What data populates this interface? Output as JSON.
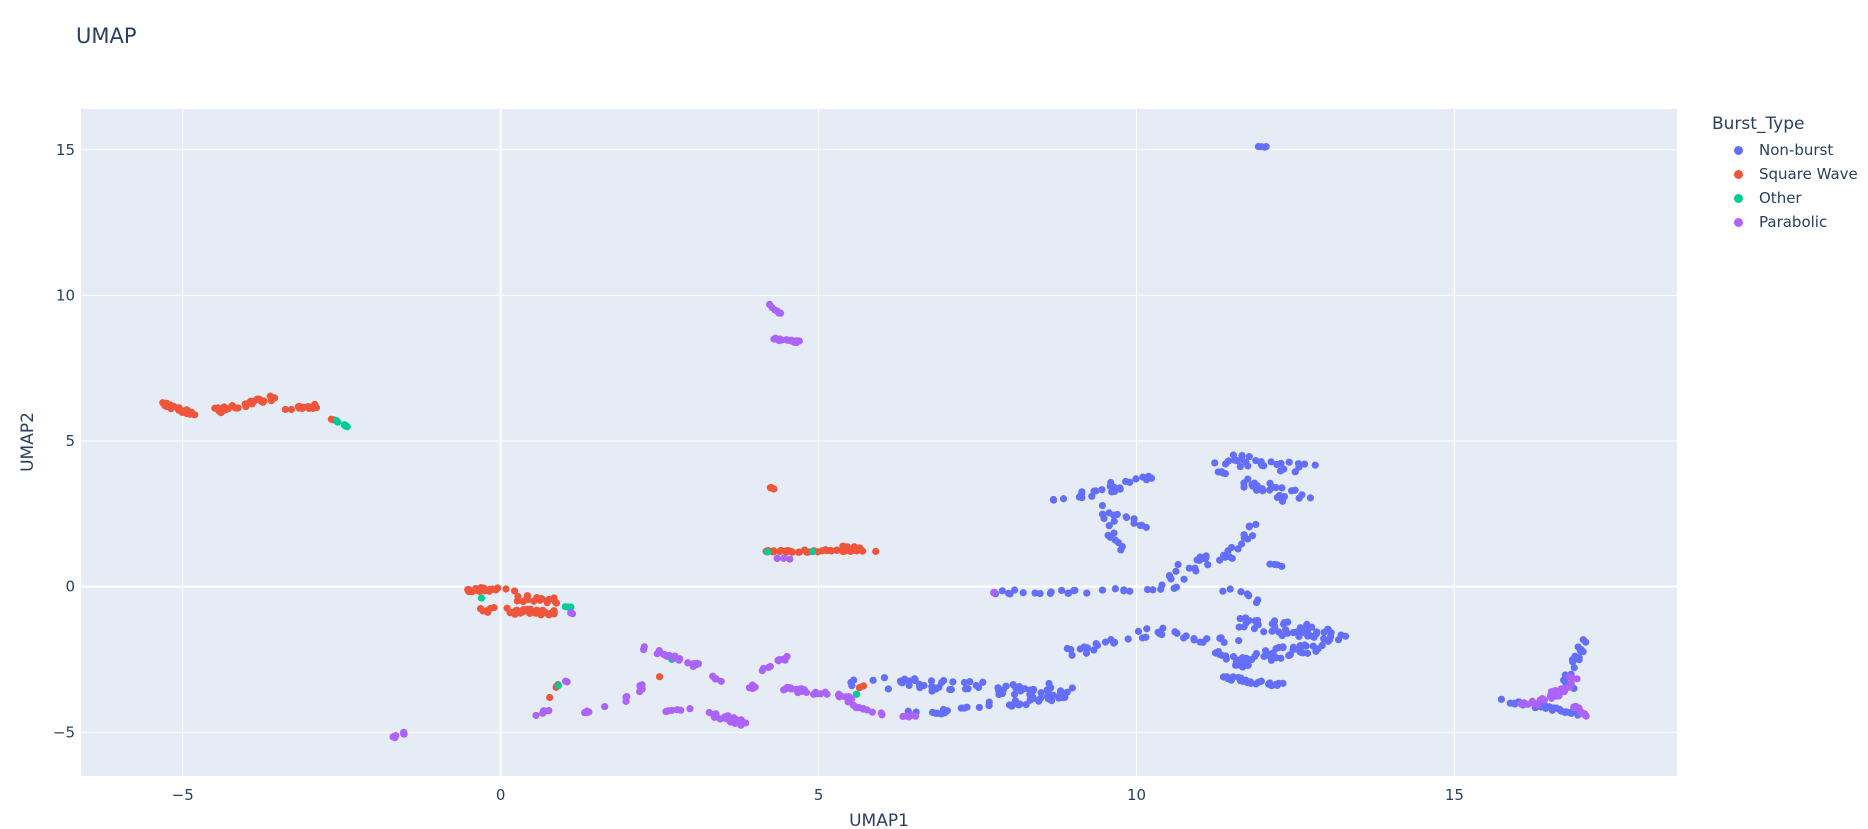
{
  "title": "UMAP",
  "colors": {
    "Non-burst": "#636efa",
    "Square Wave": "#ef553b",
    "Other": "#00cc96",
    "Parabolic": "#ab63fa"
  },
  "chart_data": {
    "type": "scatter",
    "title": "UMAP",
    "xlabel": "UMAP1",
    "ylabel": "UMAP2",
    "xlim": [
      -6.6,
      18.5
    ],
    "ylim": [
      -6.5,
      16.4
    ],
    "xticks": [
      -5,
      0,
      5,
      10,
      15
    ],
    "yticks": [
      -5,
      0,
      5,
      10,
      15
    ],
    "xtick_labels": [
      "−5",
      "0",
      "5",
      "10",
      "15"
    ],
    "ytick_labels": [
      "−5",
      "0",
      "5",
      "10",
      "15"
    ],
    "grid": true,
    "legend_title": "Burst_Type",
    "legend_position": "right",
    "series": [
      {
        "name": "Non-burst",
        "color": "#636efa",
        "clusters": [
          {
            "cx": 11.95,
            "cy": 15.1,
            "rx": 0.08,
            "ry": 0.05,
            "n": 4,
            "slope": 0
          },
          {
            "x1": 5.6,
            "y1": -3.3,
            "x2": 9.1,
            "y2": -3.6,
            "n": 70,
            "spread": 0.45
          },
          {
            "x1": 6.5,
            "y1": -4.4,
            "x2": 8.8,
            "y2": -3.8,
            "n": 35,
            "spread": 0.25
          },
          {
            "x1": 7.8,
            "y1": -0.2,
            "x2": 10.6,
            "y2": -0.1,
            "n": 24,
            "spread": 0.15
          },
          {
            "x1": 8.9,
            "y1": -2.3,
            "x2": 10.4,
            "y2": -1.5,
            "n": 22,
            "spread": 0.3
          },
          {
            "x1": 8.7,
            "y1": 3.0,
            "x2": 9.9,
            "y2": 3.5,
            "n": 20,
            "spread": 0.25
          },
          {
            "x1": 9.6,
            "y1": 3.6,
            "x2": 10.4,
            "y2": 3.8,
            "n": 8,
            "spread": 0.15
          },
          {
            "x1": 9.5,
            "y1": 2.8,
            "x2": 9.7,
            "y2": 1.3,
            "n": 14,
            "spread": 0.2
          },
          {
            "x1": 9.6,
            "y1": 2.5,
            "x2": 10.2,
            "y2": 2.0,
            "n": 8,
            "spread": 0.15
          },
          {
            "x1": 10.3,
            "y1": 0.0,
            "x2": 11.3,
            "y2": 1.0,
            "n": 22,
            "spread": 0.5
          },
          {
            "x1": 10.5,
            "y1": -1.6,
            "x2": 11.6,
            "y2": -2.0,
            "n": 14,
            "spread": 0.3
          },
          {
            "x1": 11.4,
            "y1": 1.0,
            "x2": 11.9,
            "y2": 2.2,
            "n": 14,
            "spread": 0.2
          },
          {
            "x1": 11.4,
            "y1": 4.4,
            "x2": 12.8,
            "y2": 4.0,
            "n": 30,
            "spread": 0.35
          },
          {
            "x1": 11.7,
            "y1": 3.6,
            "x2": 12.6,
            "y2": 3.0,
            "n": 24,
            "spread": 0.35
          },
          {
            "x1": 11.2,
            "y1": 4.0,
            "x2": 11.4,
            "y2": 3.9,
            "n": 4,
            "spread": 0.05
          },
          {
            "x1": 12.1,
            "y1": 0.8,
            "x2": 12.3,
            "y2": 0.7,
            "n": 4,
            "spread": 0.05
          },
          {
            "x1": 11.4,
            "y1": -0.1,
            "x2": 12.0,
            "y2": -0.5,
            "n": 8,
            "spread": 0.25
          },
          {
            "x1": 11.6,
            "y1": -1.2,
            "x2": 13.2,
            "y2": -1.7,
            "n": 50,
            "spread": 0.45
          },
          {
            "x1": 11.6,
            "y1": -2.6,
            "x2": 12.9,
            "y2": -2.0,
            "n": 45,
            "spread": 0.35
          },
          {
            "x1": 11.3,
            "y1": -3.1,
            "x2": 12.3,
            "y2": -3.4,
            "n": 26,
            "spread": 0.15
          },
          {
            "x1": 11.2,
            "y1": -2.2,
            "x2": 11.8,
            "y2": -2.8,
            "n": 8,
            "spread": 0.2
          },
          {
            "x1": 15.7,
            "y1": -3.9,
            "x2": 16.6,
            "y2": -4.2,
            "n": 22,
            "spread": 0.12
          },
          {
            "x1": 16.5,
            "y1": -4.2,
            "x2": 17.0,
            "y2": -4.4,
            "n": 10,
            "spread": 0.12
          },
          {
            "x1": 16.8,
            "y1": -3.0,
            "x2": 17.1,
            "y2": -1.6,
            "n": 16,
            "spread": 0.12
          },
          {
            "x1": 16.7,
            "y1": -3.2,
            "x2": 16.9,
            "y2": -3.5,
            "n": 5,
            "spread": 0.08
          }
        ]
      },
      {
        "name": "Square Wave",
        "color": "#ef553b",
        "clusters": [
          {
            "x1": -5.3,
            "y1": 6.3,
            "x2": -4.8,
            "y2": 5.9,
            "n": 22,
            "spread": 0.12
          },
          {
            "x1": -4.5,
            "y1": 6.0,
            "x2": -3.6,
            "y2": 6.5,
            "n": 30,
            "spread": 0.18
          },
          {
            "x1": -3.4,
            "y1": 6.1,
            "x2": -2.9,
            "y2": 6.2,
            "n": 16,
            "spread": 0.15
          },
          {
            "x1": -2.7,
            "y1": 5.8,
            "x2": -2.6,
            "y2": 5.7,
            "n": 3,
            "spread": 0.05
          },
          {
            "x1": -0.5,
            "y1": -0.1,
            "x2": 0.2,
            "y2": -0.1,
            "n": 20,
            "spread": 0.15
          },
          {
            "x1": -0.3,
            "y1": -0.8,
            "x2": 0.9,
            "y2": -0.9,
            "n": 40,
            "spread": 0.2
          },
          {
            "x1": 0.3,
            "y1": -0.4,
            "x2": 0.9,
            "y2": -0.5,
            "n": 16,
            "spread": 0.2
          },
          {
            "x1": 0.8,
            "y1": -3.8,
            "x2": 0.9,
            "y2": -3.3,
            "n": 4,
            "spread": 0.08
          },
          {
            "x1": 4.2,
            "y1": 3.45,
            "x2": 4.3,
            "y2": 3.35,
            "n": 5,
            "spread": 0.04
          },
          {
            "x1": 4.1,
            "y1": 1.2,
            "x2": 5.9,
            "y2": 1.25,
            "n": 45,
            "spread": 0.08
          },
          {
            "x1": 5.4,
            "y1": 1.4,
            "x2": 5.7,
            "y2": 1.3,
            "n": 6,
            "spread": 0.05
          },
          {
            "x1": 2.5,
            "y1": -3.1,
            "x2": 2.5,
            "y2": -3.1,
            "n": 1,
            "spread": 0.02
          },
          {
            "x1": 5.6,
            "y1": -3.5,
            "x2": 5.7,
            "y2": -3.4,
            "n": 2,
            "spread": 0.03
          }
        ]
      },
      {
        "name": "Other",
        "color": "#00cc96",
        "clusters": [
          {
            "x1": -2.6,
            "y1": 5.7,
            "x2": -2.4,
            "y2": 5.5,
            "n": 10,
            "spread": 0.03
          },
          {
            "x1": -0.3,
            "y1": -0.4,
            "x2": -0.3,
            "y2": -0.4,
            "n": 1,
            "spread": 0.02
          },
          {
            "x1": 1.0,
            "y1": -0.7,
            "x2": 1.1,
            "y2": -0.7,
            "n": 3,
            "spread": 0.03
          },
          {
            "x1": 0.9,
            "y1": -3.4,
            "x2": 0.9,
            "y2": -3.4,
            "n": 1,
            "spread": 0.02
          },
          {
            "x1": 4.2,
            "y1": 1.2,
            "x2": 4.2,
            "y2": 1.2,
            "n": 1,
            "spread": 0.02
          },
          {
            "x1": 4.9,
            "y1": 1.2,
            "x2": 4.9,
            "y2": 1.2,
            "n": 1,
            "spread": 0.02
          },
          {
            "x1": 2.7,
            "y1": -2.5,
            "x2": 2.7,
            "y2": -2.5,
            "n": 1,
            "spread": 0.02
          },
          {
            "x1": 5.6,
            "y1": -3.7,
            "x2": 5.6,
            "y2": -3.7,
            "n": 1,
            "spread": 0.02
          }
        ]
      },
      {
        "name": "Parabolic",
        "color": "#ab63fa",
        "clusters": [
          {
            "x1": -1.7,
            "y1": -5.2,
            "x2": -1.5,
            "y2": -5.0,
            "n": 6,
            "spread": 0.05
          },
          {
            "x1": 0.45,
            "y1": -4.5,
            "x2": 0.9,
            "y2": -4.1,
            "n": 6,
            "spread": 0.06
          },
          {
            "x1": 1.0,
            "y1": -3.3,
            "x2": 1.1,
            "y2": -3.2,
            "n": 2,
            "spread": 0.04
          },
          {
            "x1": 1.1,
            "y1": -0.9,
            "x2": 1.15,
            "y2": -1.0,
            "n": 3,
            "spread": 0.04
          },
          {
            "x1": 1.3,
            "y1": -4.3,
            "x2": 1.7,
            "y2": -4.1,
            "n": 5,
            "spread": 0.08
          },
          {
            "x1": 2.1,
            "y1": -2.0,
            "x2": 3.1,
            "y2": -2.7,
            "n": 20,
            "spread": 0.12
          },
          {
            "x1": 2.0,
            "y1": -3.9,
            "x2": 2.3,
            "y2": -3.4,
            "n": 8,
            "spread": 0.15
          },
          {
            "x1": 2.6,
            "y1": -4.3,
            "x2": 3.0,
            "y2": -4.2,
            "n": 6,
            "spread": 0.08
          },
          {
            "x1": 3.2,
            "y1": -4.3,
            "x2": 3.8,
            "y2": -4.7,
            "n": 28,
            "spread": 0.18
          },
          {
            "x1": 3.3,
            "y1": -3.1,
            "x2": 3.5,
            "y2": -3.3,
            "n": 4,
            "spread": 0.08
          },
          {
            "x1": 3.9,
            "y1": -3.5,
            "x2": 4.1,
            "y2": -3.3,
            "n": 5,
            "spread": 0.08
          },
          {
            "x1": 4.1,
            "y1": -2.9,
            "x2": 4.6,
            "y2": -2.3,
            "n": 10,
            "spread": 0.08
          },
          {
            "x1": 4.4,
            "y1": -3.5,
            "x2": 5.5,
            "y2": -3.8,
            "n": 30,
            "spread": 0.15
          },
          {
            "x1": 5.4,
            "y1": -4.0,
            "x2": 6.0,
            "y2": -4.4,
            "n": 12,
            "spread": 0.12
          },
          {
            "x1": 6.2,
            "y1": -4.5,
            "x2": 6.6,
            "y2": -4.4,
            "n": 5,
            "spread": 0.05
          },
          {
            "x1": 4.2,
            "y1": 9.7,
            "x2": 4.4,
            "y2": 9.4,
            "n": 6,
            "spread": 0.05
          },
          {
            "x1": 4.3,
            "y1": 8.5,
            "x2": 4.7,
            "y2": 8.4,
            "n": 16,
            "spread": 0.07
          },
          {
            "x1": 4.3,
            "y1": 1.0,
            "x2": 4.6,
            "y2": 0.9,
            "n": 3,
            "spread": 0.05
          },
          {
            "x1": 7.7,
            "y1": -0.2,
            "x2": 7.8,
            "y2": -0.2,
            "n": 2,
            "spread": 0.03
          },
          {
            "x1": 16.1,
            "y1": -4.1,
            "x2": 16.9,
            "y2": -3.4,
            "n": 30,
            "spread": 0.18
          },
          {
            "x1": 16.9,
            "y1": -4.1,
            "x2": 17.1,
            "y2": -4.5,
            "n": 12,
            "spread": 0.08
          },
          {
            "x1": 16.8,
            "y1": -3.1,
            "x2": 17.0,
            "y2": -3.2,
            "n": 4,
            "spread": 0.05
          }
        ]
      }
    ]
  }
}
